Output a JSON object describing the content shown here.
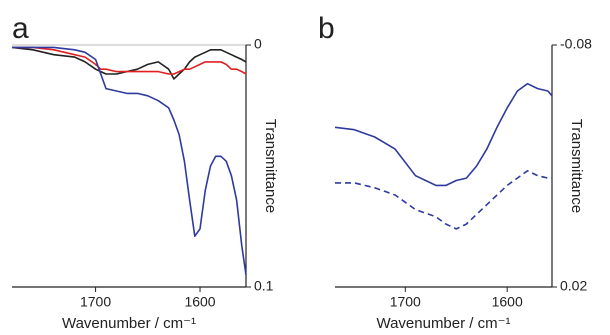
{
  "chart_data": [
    {
      "type": "line",
      "panel_label": "a",
      "x_label": "Wavenumber / cm⁻¹",
      "y_label": "Transmittance",
      "xlim": [
        1780,
        1556
      ],
      "xticks": [
        1700,
        1600
      ],
      "ylim": [
        0,
        0.1
      ],
      "yticks": [
        0,
        0.1
      ],
      "y_axis_side": "right",
      "y_inverted": true,
      "frame": [
        "top",
        "right",
        "bottom"
      ],
      "x": [
        1780,
        1760,
        1740,
        1720,
        1710,
        1700,
        1695,
        1690,
        1680,
        1670,
        1660,
        1650,
        1640,
        1630,
        1625,
        1620,
        1615,
        1610,
        1605,
        1600,
        1595,
        1590,
        1585,
        1580,
        1575,
        1570,
        1565,
        1560,
        1556
      ],
      "series": [
        {
          "color": "#222222",
          "values": [
            0.001,
            0.002,
            0.004,
            0.005,
            0.007,
            0.01,
            0.011,
            0.012,
            0.012,
            0.011,
            0.01,
            0.008,
            0.007,
            0.01,
            0.014,
            0.012,
            0.01,
            0.007,
            0.005,
            0.004,
            0.003,
            0.002,
            0.002,
            0.002,
            0.003,
            0.004,
            0.005,
            0.006,
            0.007
          ]
        },
        {
          "color": "#e02020",
          "values": [
            0.001,
            0.001,
            0.002,
            0.004,
            0.005,
            0.008,
            0.01,
            0.01,
            0.011,
            0.011,
            0.011,
            0.011,
            0.011,
            0.012,
            0.012,
            0.011,
            0.01,
            0.01,
            0.009,
            0.008,
            0.007,
            0.007,
            0.007,
            0.007,
            0.008,
            0.01,
            0.01,
            0.011,
            0.012
          ]
        },
        {
          "color": "#2e3a9e",
          "values": [
            0.001,
            0.001,
            0.001,
            0.002,
            0.003,
            0.006,
            0.012,
            0.018,
            0.019,
            0.02,
            0.02,
            0.021,
            0.023,
            0.026,
            0.031,
            0.037,
            0.048,
            0.064,
            0.079,
            0.076,
            0.06,
            0.05,
            0.046,
            0.046,
            0.048,
            0.054,
            0.064,
            0.083,
            0.095
          ]
        }
      ]
    },
    {
      "type": "line",
      "panel_label": "b",
      "x_label": "Wavenumber / cm⁻¹",
      "y_label": "Transmittance",
      "xlim": [
        1769,
        1556
      ],
      "xticks": [
        1700,
        1600
      ],
      "ylim": [
        -0.08,
        0.02
      ],
      "yticks": [
        -0.08,
        0.02
      ],
      "y_axis_side": "right",
      "y_inverted": true,
      "frame": [
        "right",
        "bottom"
      ],
      "x": [
        1769,
        1750,
        1730,
        1710,
        1690,
        1670,
        1660,
        1650,
        1640,
        1630,
        1620,
        1610,
        1600,
        1590,
        1580,
        1570,
        1560,
        1556
      ],
      "series": [
        {
          "color": "#2e3a9e",
          "dashed": false,
          "values": [
            -0.046,
            -0.045,
            -0.042,
            -0.037,
            -0.026,
            -0.022,
            -0.022,
            -0.024,
            -0.025,
            -0.03,
            -0.037,
            -0.046,
            -0.054,
            -0.061,
            -0.064,
            -0.062,
            -0.061,
            -0.059
          ]
        },
        {
          "color": "#2e3a9e",
          "dashed": true,
          "values": [
            -0.023,
            -0.023,
            -0.021,
            -0.018,
            -0.012,
            -0.009,
            -0.006,
            -0.004,
            -0.006,
            -0.01,
            -0.014,
            -0.018,
            -0.022,
            -0.025,
            -0.028,
            -0.026,
            -0.025,
            -0.025
          ]
        }
      ]
    }
  ]
}
